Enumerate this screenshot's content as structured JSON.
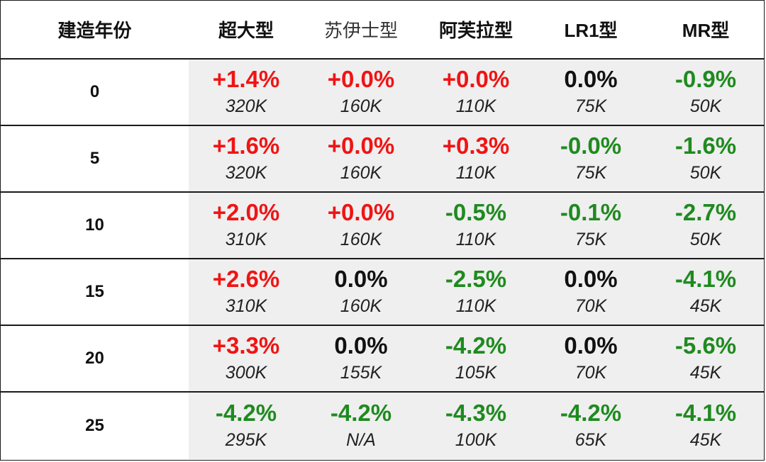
{
  "colors": {
    "positive": "#f01414",
    "negative": "#1f8a1f",
    "neutral": "#111111",
    "cell_background": "#efefef"
  },
  "headers": {
    "year": "建造年份",
    "vessel_types": [
      "超大型",
      "苏伊士型",
      "阿芙拉型",
      "LR1型",
      "MR型"
    ]
  },
  "rows": [
    {
      "year": "0",
      "cells": [
        {
          "change": "+1.4%",
          "value": "320K",
          "trend": "up"
        },
        {
          "change": "+0.0%",
          "value": "160K",
          "trend": "up"
        },
        {
          "change": "+0.0%",
          "value": "110K",
          "trend": "up"
        },
        {
          "change": "0.0%",
          "value": "75K",
          "trend": "flat"
        },
        {
          "change": "-0.9%",
          "value": "50K",
          "trend": "down"
        }
      ]
    },
    {
      "year": "5",
      "cells": [
        {
          "change": "+1.6%",
          "value": "320K",
          "trend": "up"
        },
        {
          "change": "+0.0%",
          "value": "160K",
          "trend": "up"
        },
        {
          "change": "+0.3%",
          "value": "110K",
          "trend": "up"
        },
        {
          "change": "-0.0%",
          "value": "75K",
          "trend": "down"
        },
        {
          "change": "-1.6%",
          "value": "50K",
          "trend": "down"
        }
      ]
    },
    {
      "year": "10",
      "cells": [
        {
          "change": "+2.0%",
          "value": "310K",
          "trend": "up"
        },
        {
          "change": "+0.0%",
          "value": "160K",
          "trend": "up"
        },
        {
          "change": "-0.5%",
          "value": "110K",
          "trend": "down"
        },
        {
          "change": "-0.1%",
          "value": "75K",
          "trend": "down"
        },
        {
          "change": "-2.7%",
          "value": "50K",
          "trend": "down"
        }
      ]
    },
    {
      "year": "15",
      "cells": [
        {
          "change": "+2.6%",
          "value": "310K",
          "trend": "up"
        },
        {
          "change": "0.0%",
          "value": "160K",
          "trend": "flat"
        },
        {
          "change": "-2.5%",
          "value": "110K",
          "trend": "down"
        },
        {
          "change": "0.0%",
          "value": "70K",
          "trend": "flat"
        },
        {
          "change": "-4.1%",
          "value": "45K",
          "trend": "down"
        }
      ]
    },
    {
      "year": "20",
      "cells": [
        {
          "change": "+3.3%",
          "value": "300K",
          "trend": "up"
        },
        {
          "change": "0.0%",
          "value": "155K",
          "trend": "flat"
        },
        {
          "change": "-4.2%",
          "value": "105K",
          "trend": "down"
        },
        {
          "change": "0.0%",
          "value": "70K",
          "trend": "flat"
        },
        {
          "change": "-5.6%",
          "value": "45K",
          "trend": "down"
        }
      ]
    },
    {
      "year": "25",
      "cells": [
        {
          "change": "-4.2%",
          "value": "295K",
          "trend": "down"
        },
        {
          "change": "-4.2%",
          "value": "N/A",
          "trend": "down"
        },
        {
          "change": "-4.3%",
          "value": "100K",
          "trend": "down"
        },
        {
          "change": "-4.2%",
          "value": "65K",
          "trend": "down"
        },
        {
          "change": "-4.1%",
          "value": "45K",
          "trend": "down"
        }
      ]
    }
  ]
}
